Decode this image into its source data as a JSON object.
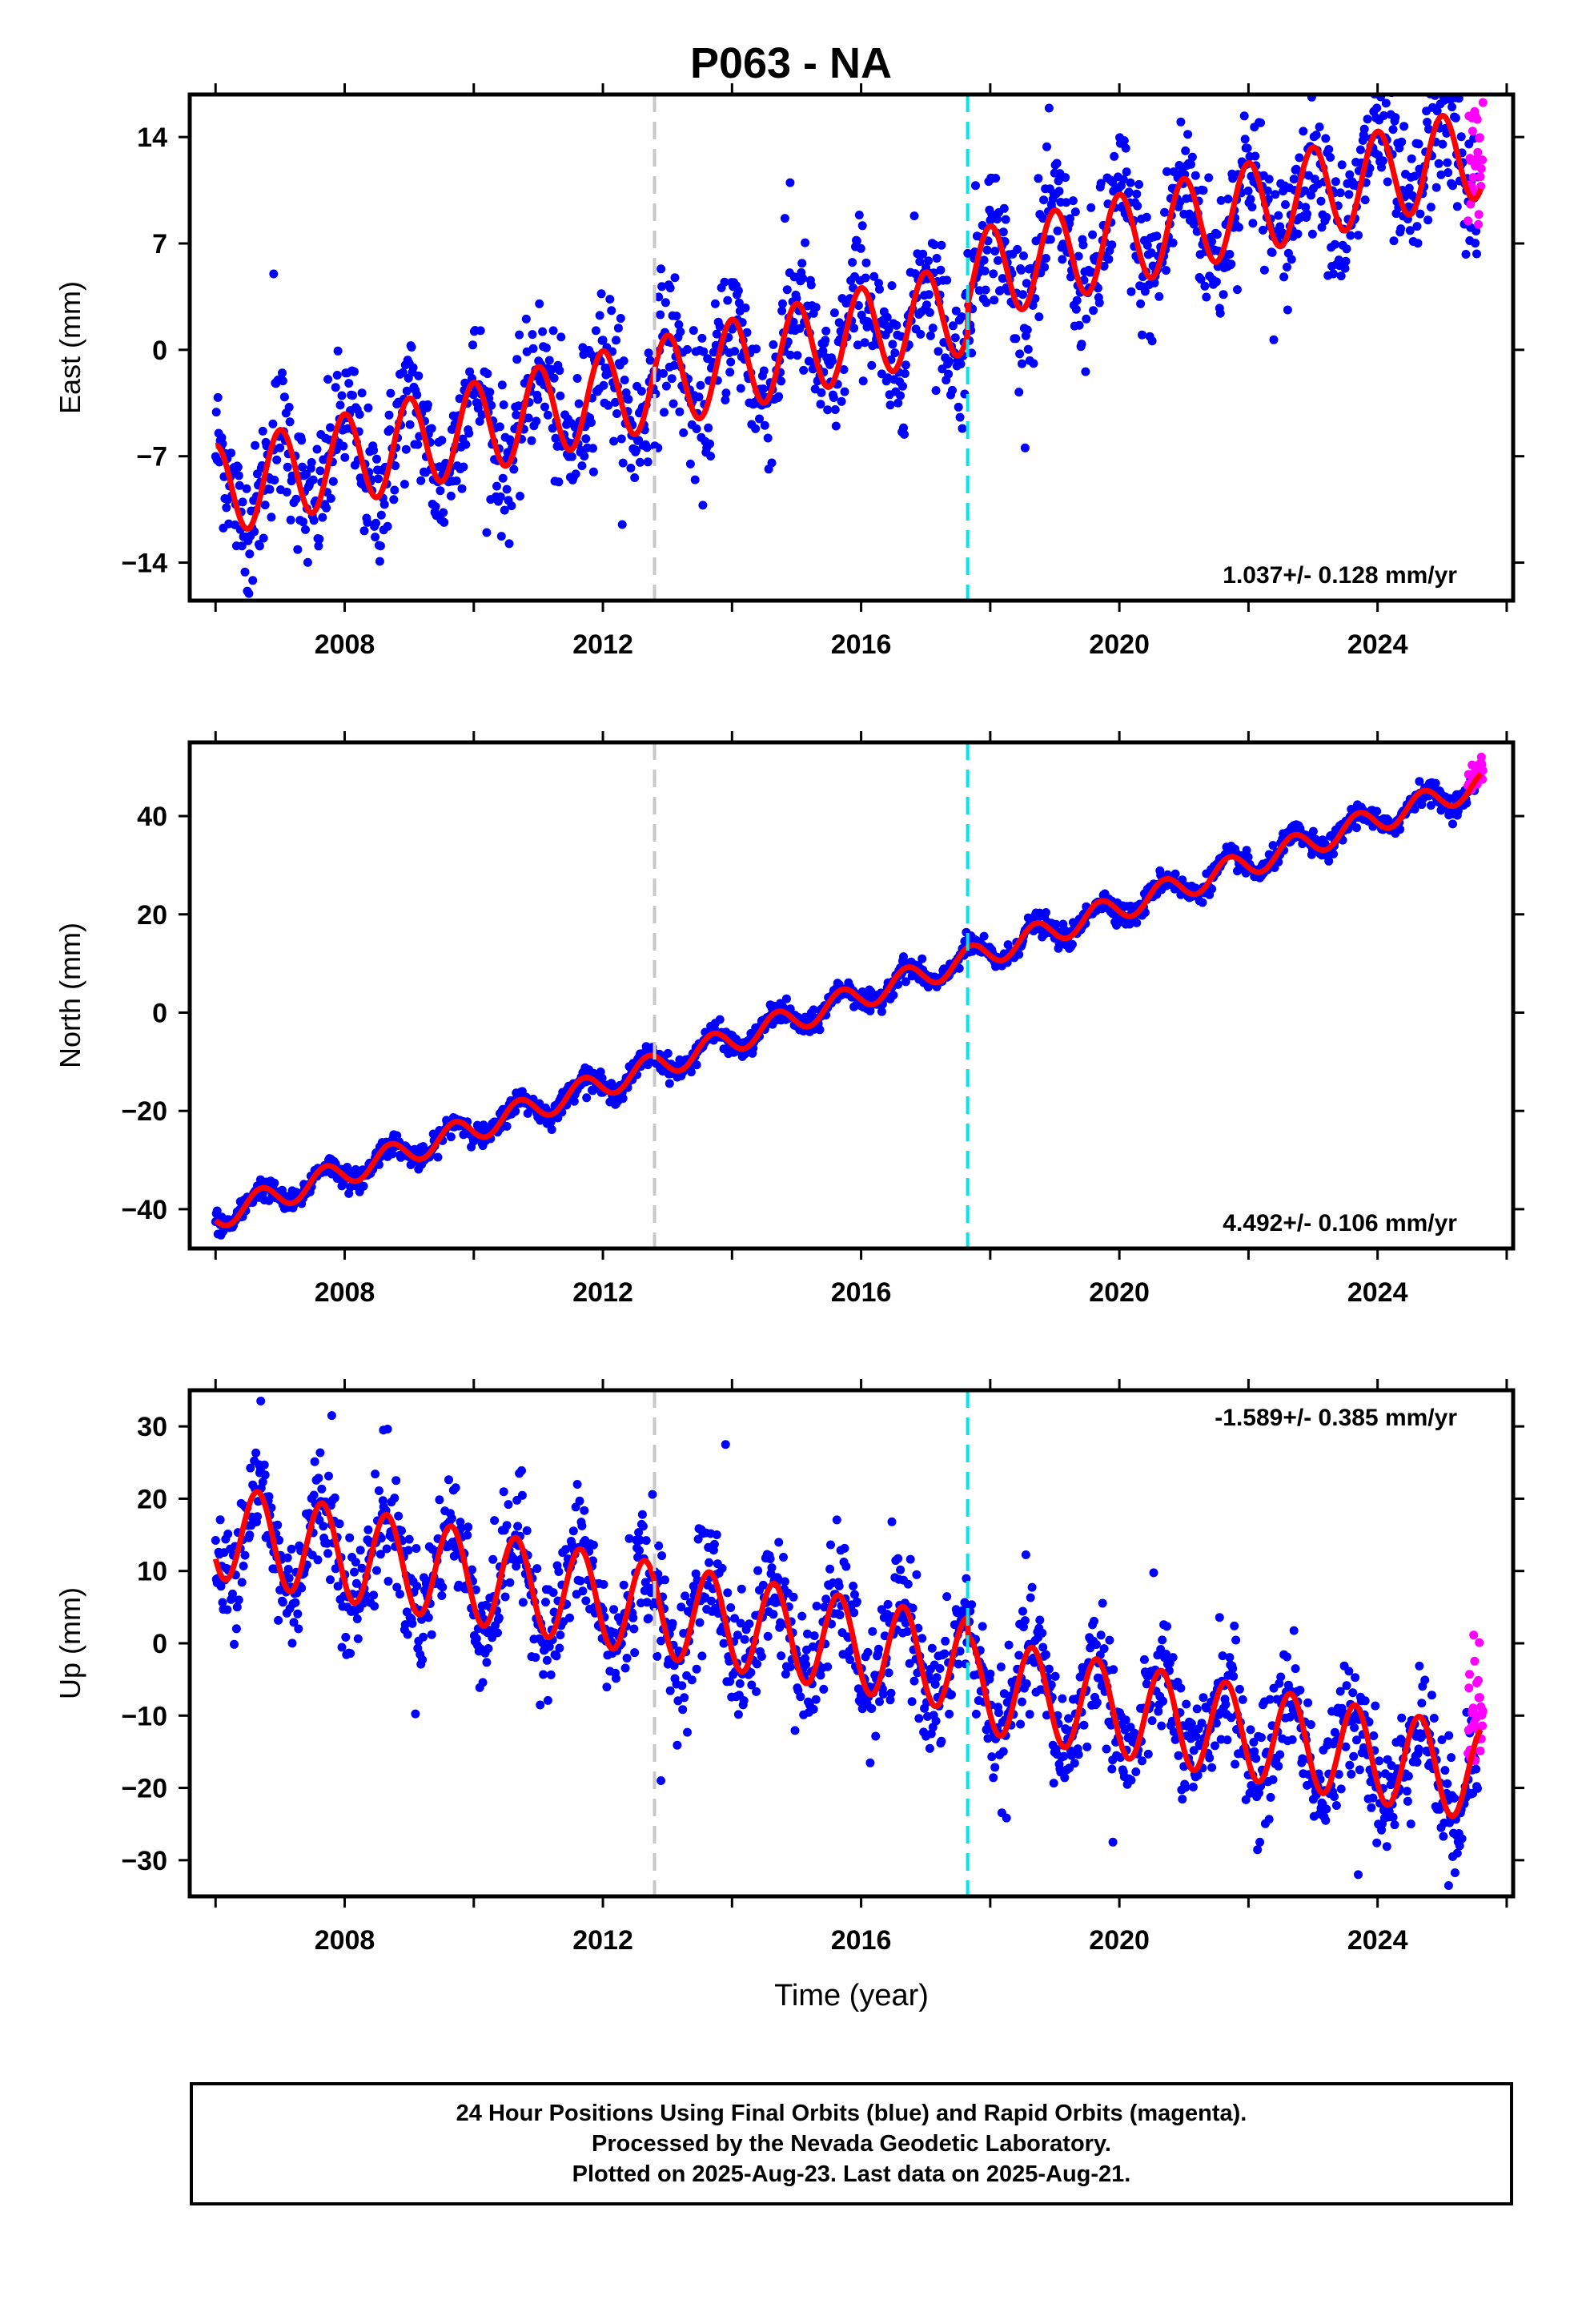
{
  "title": "P063 - NA",
  "footer": {
    "line1": "24 Hour Positions Using Final Orbits (blue) and Rapid Orbits (magenta).",
    "line2": "Processed by the Nevada Geodetic Laboratory.",
    "line3": "Plotted on 2025-Aug-23. Last data on 2025-Aug-21."
  },
  "colors": {
    "final_orbits": "#0000ff",
    "rapid_orbits": "#ff00ff",
    "model_fit": "#ff0000",
    "marker_line_1": "#c8c8c8",
    "marker_line_2": "#00e5ee"
  },
  "chart_data": [
    {
      "type": "scatter",
      "component": "east",
      "ylabel": "East (mm)",
      "xlabel": "",
      "xlim": [
        2005.6,
        2026.1
      ],
      "ylim": [
        -16.5,
        16.8
      ],
      "yticks": [
        -14,
        -7,
        0,
        7,
        14
      ],
      "xticks": [
        2008,
        2012,
        2016,
        2020,
        2024
      ],
      "rate_label": "1.037+/- 0.128 mm/yr",
      "rate_label_position": "bottom-right",
      "vertical_markers": [
        2012.8,
        2017.65
      ],
      "data_span": [
        2006.0,
        2025.55
      ],
      "rapid_span": [
        2025.4,
        2025.64
      ],
      "model": {
        "intercept_at_2006": -9.3,
        "rate": 1.037,
        "annual_amp": 3.0,
        "annual_phase": 0.75,
        "step": {
          "t": 2017.65,
          "size": 2.0
        }
      },
      "scatter_noise": 2.3,
      "outliers": [
        [
          2006.9,
          5.0
        ],
        [
          2014.9,
          11.0
        ]
      ]
    },
    {
      "type": "scatter",
      "component": "north",
      "ylabel": "North (mm)",
      "xlabel": "",
      "xlim": [
        2005.6,
        2026.1
      ],
      "ylim": [
        -48,
        55
      ],
      "yticks": [
        -40,
        -20,
        0,
        20,
        40
      ],
      "xticks": [
        2008,
        2012,
        2016,
        2020,
        2024
      ],
      "rate_label": "4.492+/- 0.106 mm/yr",
      "rate_label_position": "bottom-right",
      "vertical_markers": [
        2012.8,
        2017.65
      ],
      "data_span": [
        2006.0,
        2025.55
      ],
      "rapid_span": [
        2025.4,
        2025.64
      ],
      "model": {
        "intercept_at_2006": -41.5,
        "rate": 4.492,
        "annual_amp": 2.6,
        "annual_phase": 0.45,
        "step": {
          "t": 2017.65,
          "size": 0
        }
      },
      "scatter_noise": 1.1,
      "outliers": []
    },
    {
      "type": "scatter",
      "component": "up",
      "ylabel": "Up (mm)",
      "xlabel": "Time (year)",
      "xlim": [
        2005.6,
        2026.1
      ],
      "ylim": [
        -35,
        35
      ],
      "yticks": [
        -30,
        -20,
        -10,
        0,
        10,
        20,
        30
      ],
      "xticks": [
        2008,
        2012,
        2016,
        2020,
        2024
      ],
      "rate_label": "-1.589+/- 0.385 mm/yr",
      "rate_label_position": "top-right",
      "vertical_markers": [
        2012.8,
        2017.65
      ],
      "data_span": [
        2006.0,
        2025.55
      ],
      "rapid_span": [
        2025.4,
        2025.64
      ],
      "model": {
        "intercept_at_2006": 15.5,
        "rate": -1.589,
        "annual_amp": 6.5,
        "annual_phase": 0.4,
        "step": {
          "t": 2017.65,
          "size": -2.5
        }
      },
      "scatter_noise": 4.2,
      "outliers": [
        [
          2006.7,
          33.5
        ],
        [
          2007.8,
          31.5
        ],
        [
          2008.6,
          29.5
        ],
        [
          2013.9,
          27.5
        ],
        [
          2012.9,
          -19.0
        ],
        [
          2019.9,
          -27.5
        ],
        [
          2023.7,
          -32.0
        ],
        [
          2025.1,
          -33.5
        ]
      ]
    }
  ]
}
